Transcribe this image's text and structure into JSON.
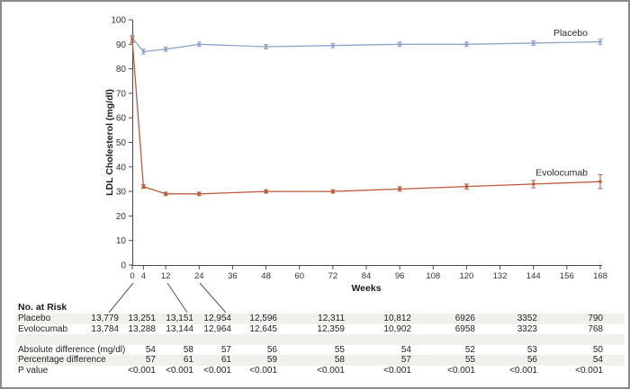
{
  "chart_data": {
    "type": "line",
    "xlabel": "Weeks",
    "ylabel": "LDL Cholesterol (mg/dl)",
    "ylim": [
      0,
      100
    ],
    "y_ticks": [
      0,
      10,
      20,
      30,
      40,
      50,
      60,
      70,
      80,
      90,
      100
    ],
    "x_ticks": [
      0,
      4,
      12,
      24,
      36,
      48,
      60,
      72,
      84,
      96,
      108,
      120,
      132,
      144,
      156,
      168
    ],
    "x": [
      0,
      4,
      12,
      24,
      48,
      72,
      96,
      120,
      144,
      168
    ],
    "grid": false,
    "legend_position": "end-of-line-labels",
    "series": [
      {
        "name": "Placebo",
        "color": "#8fa5c8",
        "marker": "square",
        "values": [
          92.5,
          87,
          88,
          90,
          89,
          89.5,
          90,
          90,
          90.5,
          91
        ],
        "errors": [
          1.3,
          1.0,
          0.9,
          0.9,
          0.9,
          0.9,
          0.9,
          0.9,
          0.9,
          1.1
        ]
      },
      {
        "name": "Evolocumab",
        "color": "#bb5a3e",
        "marker": "square",
        "values": [
          92,
          32,
          29,
          29,
          30,
          30,
          31,
          32,
          33,
          34
        ],
        "errors": [
          1.3,
          0.7,
          0.7,
          0.7,
          0.7,
          0.7,
          0.9,
          1.0,
          1.5,
          2.8
        ]
      }
    ]
  },
  "table": {
    "header": "No. at Risk",
    "rows": [
      {
        "label": "Placebo",
        "values": [
          "13,779",
          "13,251",
          "13,151",
          "12,954",
          "12,596",
          "12,311",
          "10,812",
          "6926",
          "3352",
          "790"
        ]
      },
      {
        "label": "Evolocumab",
        "values": [
          "13,784",
          "13,288",
          "13,144",
          "12,964",
          "12,645",
          "12,359",
          "10,902",
          "6958",
          "3323",
          "768"
        ]
      },
      {
        "label": "",
        "values": [
          "",
          "",
          "",
          "",
          "",
          "",
          "",
          "",
          "",
          ""
        ]
      },
      {
        "label": "Absolute difference (mg/dl)",
        "values": [
          "",
          "54",
          "58",
          "57",
          "56",
          "55",
          "54",
          "52",
          "53",
          "50"
        ]
      },
      {
        "label": "Percentage difference",
        "values": [
          "",
          "57",
          "61",
          "61",
          "59",
          "58",
          "57",
          "55",
          "56",
          "54"
        ]
      },
      {
        "label": "P value",
        "values": [
          "",
          "<0.001",
          "<0.001",
          "<0.001",
          "<0.001",
          "<0.001",
          "<0.001",
          "<0.001",
          "<0.001",
          "<0.001"
        ]
      }
    ]
  }
}
